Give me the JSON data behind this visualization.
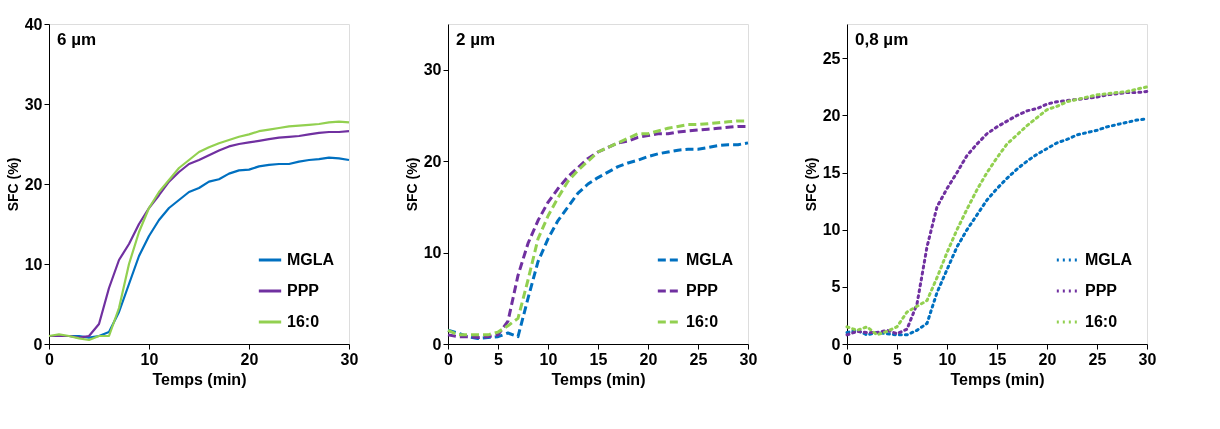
{
  "chart_data": [
    {
      "type": "line",
      "title": "6 µm",
      "xlabel": "Temps (min)",
      "ylabel": "SFC (%)",
      "x": [
        0,
        1,
        2,
        3,
        4,
        5,
        6,
        7,
        8,
        9,
        10,
        11,
        12,
        13,
        14,
        15,
        16,
        17,
        18,
        19,
        20,
        21,
        22,
        23,
        24,
        25,
        26,
        27,
        28,
        29,
        30
      ],
      "xlim": [
        0,
        30
      ],
      "xticks": [
        0,
        10,
        20,
        30
      ],
      "ylim": [
        0,
        40
      ],
      "yticks": [
        0,
        10,
        20,
        30,
        40
      ],
      "grid": false,
      "legend": "bottom right",
      "line_style": "solid",
      "series": [
        {
          "name": "MGLA",
          "color": "#0070c0",
          "values": [
            1,
            1,
            1,
            1,
            0.8,
            1,
            1.5,
            4,
            7.5,
            11,
            13.5,
            15.5,
            17,
            18,
            19,
            19.5,
            20.3,
            20.6,
            21.3,
            21.7,
            21.8,
            22.2,
            22.4,
            22.5,
            22.5,
            22.8,
            23,
            23.1,
            23.3,
            23.2,
            23
          ]
        },
        {
          "name": "PPP",
          "color": "#7030a0",
          "values": [
            1,
            1,
            1,
            0.8,
            1,
            2.5,
            7,
            10.5,
            12.5,
            15,
            17,
            18.6,
            20.3,
            21.5,
            22.5,
            23,
            23.6,
            24.2,
            24.7,
            25,
            25.2,
            25.4,
            25.6,
            25.8,
            25.9,
            26,
            26.2,
            26.4,
            26.5,
            26.5,
            26.6
          ]
        },
        {
          "name": "16:0",
          "color": "#92d050",
          "values": [
            1,
            1.2,
            1,
            0.7,
            0.5,
            1,
            1,
            4.5,
            10,
            14,
            17,
            19,
            20.5,
            22,
            23,
            24,
            24.6,
            25.1,
            25.5,
            25.9,
            26.2,
            26.6,
            26.8,
            27,
            27.2,
            27.3,
            27.4,
            27.5,
            27.7,
            27.8,
            27.7
          ]
        }
      ]
    },
    {
      "type": "line",
      "title": "2 µm",
      "xlabel": "Temps (min)",
      "ylabel": "SFC (%)",
      "x": [
        0,
        1,
        2,
        3,
        4,
        5,
        6,
        7,
        8,
        9,
        10,
        11,
        12,
        13,
        14,
        15,
        16,
        17,
        18,
        19,
        20,
        21,
        22,
        23,
        24,
        25,
        26,
        27,
        28,
        29,
        30
      ],
      "xlim": [
        0,
        30
      ],
      "xticks": [
        0,
        5,
        10,
        15,
        20,
        25,
        30
      ],
      "ylim": [
        0,
        35
      ],
      "yticks": [
        0,
        10,
        20,
        30
      ],
      "grid": false,
      "legend": "bottom right",
      "line_style": "dashed",
      "series": [
        {
          "name": "MGLA",
          "color": "#0070c0",
          "values": [
            1.5,
            1.2,
            0.8,
            0.6,
            0.7,
            0.8,
            1.2,
            0.8,
            5,
            9,
            11.5,
            13.5,
            15,
            16.5,
            17.5,
            18.2,
            18.8,
            19.4,
            19.8,
            20.1,
            20.5,
            20.8,
            21,
            21.2,
            21.3,
            21.3,
            21.5,
            21.7,
            21.8,
            21.8,
            22
          ]
        },
        {
          "name": "PPP",
          "color": "#7030a0",
          "values": [
            1,
            0.8,
            0.8,
            0.7,
            0.8,
            1,
            2.5,
            7.5,
            11,
            13.5,
            15.5,
            17,
            18.3,
            19.3,
            20.3,
            21,
            21.5,
            22,
            22.2,
            22.6,
            22.8,
            23,
            23,
            23.2,
            23.3,
            23.4,
            23.5,
            23.6,
            23.7,
            23.8,
            23.8
          ]
        },
        {
          "name": "16:0",
          "color": "#92d050",
          "values": [
            1.5,
            1,
            1,
            1,
            1,
            1.3,
            2,
            2.8,
            7,
            11.5,
            14,
            16,
            17.8,
            19,
            20,
            21,
            21.5,
            22,
            22.5,
            23,
            23,
            23.3,
            23.6,
            23.8,
            24,
            24,
            24.1,
            24.2,
            24.3,
            24.4,
            24.4
          ]
        }
      ]
    },
    {
      "type": "line",
      "title": "0,8 µm",
      "xlabel": "Temps (min)",
      "ylabel": "SFC (%)",
      "x": [
        0,
        1,
        2,
        3,
        4,
        5,
        6,
        7,
        8,
        9,
        10,
        11,
        12,
        13,
        14,
        15,
        16,
        17,
        18,
        19,
        20,
        21,
        22,
        23,
        24,
        25,
        26,
        27,
        28,
        29,
        30
      ],
      "xlim": [
        0,
        30
      ],
      "xticks": [
        0,
        5,
        10,
        15,
        20,
        25,
        30
      ],
      "ylim": [
        0,
        28
      ],
      "yticks": [
        0,
        5,
        10,
        15,
        20,
        25
      ],
      "grid": false,
      "legend": "bottom right",
      "line_style": "dotted",
      "series": [
        {
          "name": "MGLA",
          "color": "#0070c0",
          "values": [
            1,
            1.2,
            0.8,
            1,
            0.9,
            0.8,
            0.8,
            1.2,
            1.8,
            4.5,
            6.5,
            8.5,
            10,
            11.3,
            12.6,
            13.6,
            14.5,
            15.3,
            16,
            16.6,
            17.1,
            17.6,
            17.9,
            18.3,
            18.5,
            18.7,
            19,
            19.2,
            19.4,
            19.6,
            19.7
          ]
        },
        {
          "name": "PPP",
          "color": "#7030a0",
          "values": [
            0.8,
            1.1,
            1,
            1,
            1.2,
            0.9,
            1.3,
            3.5,
            8.5,
            12,
            13.6,
            15,
            16.5,
            17.5,
            18.4,
            19,
            19.5,
            20,
            20.4,
            20.6,
            21,
            21.2,
            21.3,
            21.4,
            21.5,
            21.6,
            21.8,
            21.9,
            22,
            22,
            22.1
          ]
        },
        {
          "name": "16:0",
          "color": "#92d050",
          "values": [
            1.5,
            1.2,
            1.5,
            0.8,
            1.1,
            1.5,
            2.8,
            3.3,
            3.8,
            5.8,
            8,
            10,
            11.8,
            13.5,
            15,
            16.3,
            17.5,
            18.3,
            19.1,
            19.8,
            20.5,
            20.8,
            21.2,
            21.4,
            21.6,
            21.8,
            21.9,
            22,
            22.1,
            22.3,
            22.5
          ]
        }
      ]
    }
  ]
}
